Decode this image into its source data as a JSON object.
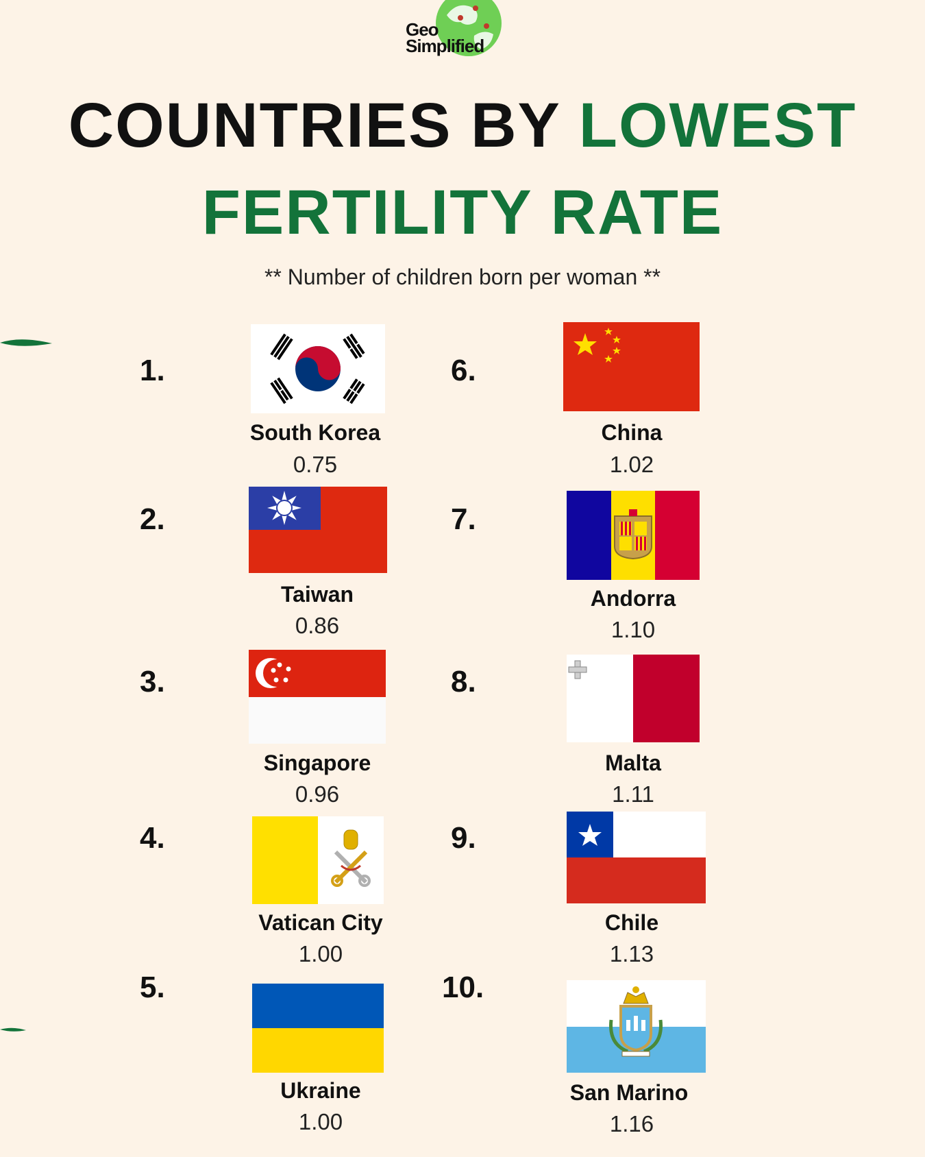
{
  "brand": {
    "line1": "Geo",
    "line2": "Simplified"
  },
  "title": {
    "part1": "COUNTRIES BY ",
    "part1_highlight": "LOWEST",
    "line2": "FERTILITY RATE"
  },
  "subtitle": "** Number of children born per woman **",
  "colors": {
    "background": "#fdf3e7",
    "accent_green": "#13733a"
  },
  "countries": [
    {
      "rank": "1.",
      "name": "South Korea",
      "value": "0.75",
      "flag": "south-korea-flag"
    },
    {
      "rank": "2.",
      "name": "Taiwan",
      "value": "0.86",
      "flag": "taiwan-flag"
    },
    {
      "rank": "3.",
      "name": "Singapore",
      "value": "0.96",
      "flag": "singapore-flag"
    },
    {
      "rank": "4.",
      "name": "Vatican City",
      "value": "1.00",
      "flag": "vatican-city-flag"
    },
    {
      "rank": "5.",
      "name": "Ukraine",
      "value": "1.00",
      "flag": "ukraine-flag"
    },
    {
      "rank": "6.",
      "name": "China",
      "value": "1.02",
      "flag": "china-flag"
    },
    {
      "rank": "7.",
      "name": "Andorra",
      "value": "1.10",
      "flag": "andorra-flag"
    },
    {
      "rank": "8.",
      "name": "Malta",
      "value": "1.11",
      "flag": "malta-flag"
    },
    {
      "rank": "9.",
      "name": "Chile",
      "value": "1.13",
      "flag": "chile-flag"
    },
    {
      "rank": "10.",
      "name": "San Marino",
      "value": "1.16",
      "flag": "san-marino-flag"
    }
  ]
}
